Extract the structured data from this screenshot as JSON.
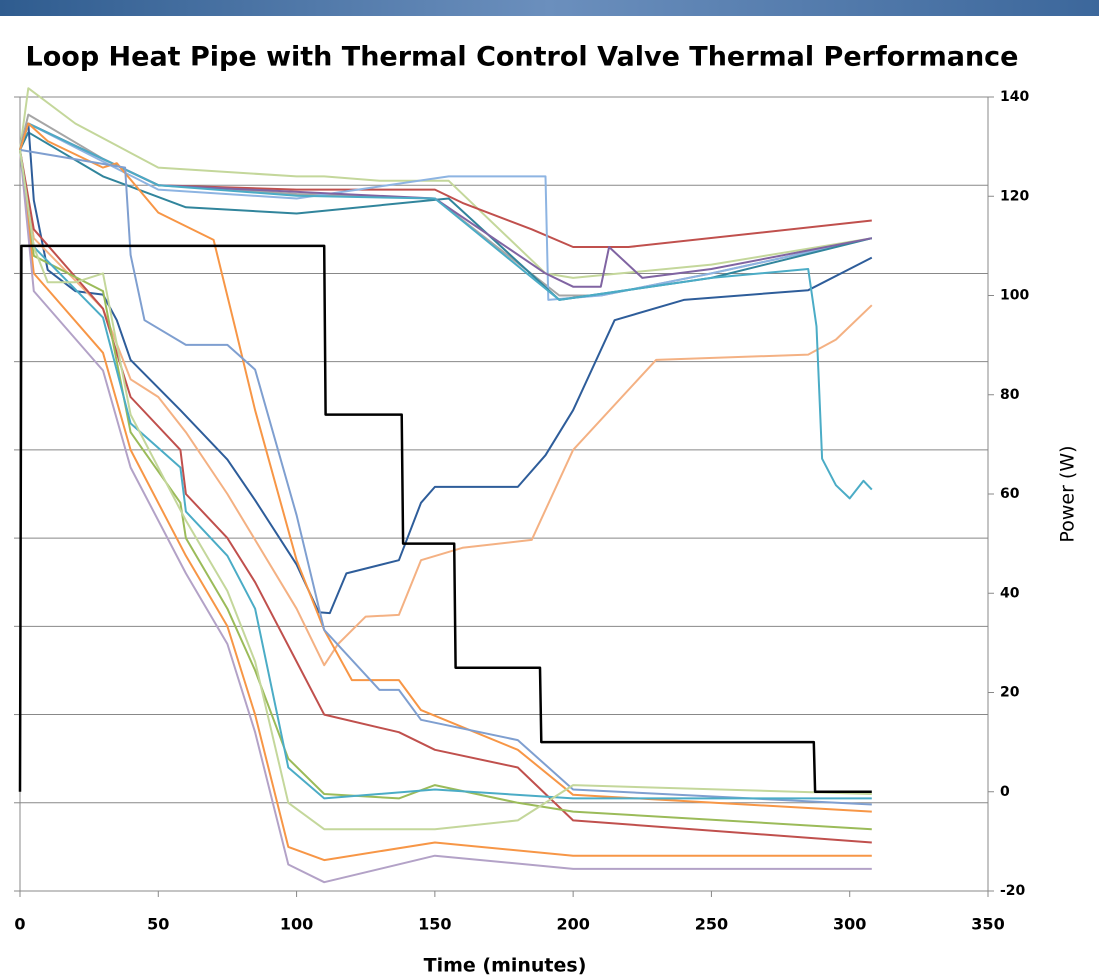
{
  "chart_data": {
    "type": "line",
    "title": "Loop Heat Pipe with Thermal Control Valve Thermal Performance",
    "x_label": "Time (minutes)",
    "y2_label": "Power (W)",
    "xlim": [
      0,
      350
    ],
    "xticks": [
      0,
      50,
      100,
      150,
      200,
      250,
      300,
      350
    ],
    "ylim": [
      -40,
      50
    ],
    "yticks": [
      -40,
      -30,
      -20,
      -10,
      0,
      10,
      20,
      30,
      40,
      50
    ],
    "y2lim": [
      -20,
      140
    ],
    "y2ticks": [
      -20,
      0,
      20,
      40,
      60,
      80,
      100,
      120,
      140
    ],
    "grid": true,
    "series": [
      {
        "color": "#c4d79b",
        "x": [
          0,
          3,
          20,
          50,
          100,
          110,
          130,
          155,
          190,
          200,
          250,
          308
        ],
        "values": [
          44,
          51,
          47,
          42,
          41,
          41,
          40.5,
          40.5,
          30,
          29.5,
          31,
          34
        ]
      },
      {
        "color": "#c0504d",
        "x": [
          0,
          3,
          50,
          100,
          150,
          160,
          185,
          200,
          220,
          308
        ],
        "values": [
          44,
          47,
          40,
          39.5,
          39.5,
          38,
          35,
          33,
          33,
          36
        ]
      },
      {
        "color": "#a6a6a6",
        "x": [
          0,
          3,
          30,
          50,
          100,
          150,
          195,
          210,
          250,
          308
        ],
        "values": [
          44,
          48,
          43,
          40,
          39,
          38.5,
          27.5,
          27.5,
          30,
          34
        ]
      },
      {
        "color": "#8db4e2",
        "x": [
          0,
          3,
          50,
          100,
          155,
          190,
          191,
          210,
          250,
          308
        ],
        "values": [
          44,
          47,
          39.5,
          38.5,
          41,
          41,
          27,
          27.5,
          30,
          34
        ]
      },
      {
        "color": "#31859c",
        "x": [
          0,
          3,
          30,
          60,
          100,
          155,
          195,
          250,
          308
        ],
        "values": [
          44,
          46,
          41,
          37.5,
          36.8,
          38.5,
          27,
          29.5,
          34
        ]
      },
      {
        "color": "#8064a2",
        "x": [
          0,
          3,
          50,
          150,
          190,
          200,
          210,
          213,
          225,
          250,
          308
        ],
        "values": [
          44,
          47,
          40,
          38.5,
          30,
          28.5,
          28.5,
          33,
          29.5,
          30.5,
          34
        ]
      },
      {
        "color": "#2e5d9a",
        "x": [
          0,
          3,
          5,
          10,
          20,
          30,
          35,
          40,
          58,
          75,
          85,
          100,
          108,
          112,
          118,
          137,
          145,
          150,
          180,
          190,
          200,
          215,
          240,
          285,
          308
        ],
        "values": [
          44,
          47,
          38.3,
          30.4,
          28,
          27.6,
          24.7,
          20.2,
          14.5,
          8.9,
          4.3,
          -3,
          -8.4,
          -8.5,
          -4,
          -2.5,
          4,
          5.8,
          5.8,
          9.4,
          14.5,
          24.7,
          27,
          28.1,
          31.8
        ]
      },
      {
        "color": "#f4b183",
        "x": [
          0,
          5,
          30,
          40,
          50,
          60,
          75,
          100,
          110,
          115,
          125,
          137,
          145,
          160,
          185,
          200,
          230,
          285,
          295,
          308
        ],
        "values": [
          44,
          34,
          26,
          18,
          16,
          12,
          5,
          -8,
          -14.4,
          -12,
          -8.9,
          -8.7,
          -2.5,
          -1.1,
          -0.2,
          10,
          20.2,
          20.8,
          22.5,
          26.4
        ]
      },
      {
        "color": "#4bacc6",
        "x": [
          0,
          3,
          50,
          100,
          150,
          195,
          250,
          285,
          288,
          290,
          295,
          300,
          305,
          308
        ],
        "values": [
          44,
          47,
          40,
          38.8,
          38.5,
          27,
          29.5,
          30.5,
          24,
          9,
          6,
          4.5,
          6.5,
          5.5
        ]
      },
      {
        "color": "#f79646",
        "x": [
          0,
          3,
          10,
          30,
          35,
          50,
          70,
          78,
          85,
          100,
          110,
          120,
          137,
          145,
          180,
          200,
          308
        ],
        "values": [
          44,
          47,
          45,
          42,
          42.5,
          36.9,
          33.8,
          23.6,
          14.5,
          -2.5,
          -10.4,
          -16.1,
          -16.1,
          -19.5,
          -24,
          -29.1,
          -31
        ]
      },
      {
        "color": "#7f9fd0",
        "x": [
          0,
          38,
          40,
          45,
          60,
          75,
          85,
          100,
          110,
          130,
          137,
          145,
          180,
          200,
          308
        ],
        "values": [
          44,
          42,
          32.1,
          24.7,
          21.9,
          21.9,
          19.1,
          2.6,
          -10.4,
          -17.2,
          -17.2,
          -20.6,
          -22.9,
          -28.5,
          -30.2
        ]
      },
      {
        "color": "#c0504d",
        "x": [
          0,
          5,
          30,
          40,
          58,
          60,
          75,
          85,
          100,
          110,
          137,
          150,
          180,
          200,
          308
        ],
        "values": [
          44,
          35,
          26,
          16,
          10,
          5,
          0,
          -5,
          -14,
          -20,
          -22,
          -24,
          -26,
          -32,
          -34.5
        ]
      },
      {
        "color": "#9bbb59",
        "x": [
          0,
          5,
          30,
          40,
          58,
          60,
          75,
          85,
          97,
          110,
          137,
          150,
          180,
          200,
          308
        ],
        "values": [
          44,
          32,
          28,
          12,
          4,
          0,
          -8,
          -15,
          -25,
          -29,
          -29.5,
          -28,
          -30,
          -31,
          -33
        ]
      },
      {
        "color": "#f79646",
        "x": [
          0,
          5,
          30,
          40,
          60,
          75,
          85,
          97,
          110,
          150,
          200,
          308
        ],
        "values": [
          44,
          30,
          21,
          10,
          -2,
          -10,
          -20,
          -35,
          -36.5,
          -34.5,
          -36,
          -36
        ]
      },
      {
        "color": "#b3a2c7",
        "x": [
          0,
          5,
          30,
          40,
          60,
          75,
          85,
          97,
          110,
          150,
          200,
          308
        ],
        "values": [
          44,
          28,
          19,
          8,
          -4,
          -12,
          -22,
          -37,
          -39,
          -36,
          -37.5,
          -37.5
        ]
      },
      {
        "color": "#4bacc6",
        "x": [
          0,
          5,
          30,
          40,
          58,
          60,
          75,
          85,
          97,
          110,
          150,
          200,
          308
        ],
        "values": [
          44,
          33,
          25,
          13,
          8,
          3,
          -2,
          -8,
          -26,
          -29.5,
          -28.5,
          -29.5,
          -29.5
        ]
      },
      {
        "color": "#c4d79b",
        "x": [
          0,
          5,
          10,
          20,
          30,
          40,
          60,
          75,
          85,
          97,
          110,
          150,
          180,
          200,
          308
        ],
        "values": [
          44,
          33,
          29,
          29,
          30,
          14,
          2,
          -6,
          -14,
          -30,
          -33,
          -33,
          -32,
          -28,
          -29
        ]
      },
      {
        "color": "#000000",
        "axis": "y2",
        "x": [
          0,
          0.5,
          110,
          110.5,
          138,
          138.5,
          157,
          157.5,
          188,
          188.5,
          287,
          287.5,
          308
        ],
        "values": [
          0,
          110,
          110,
          76,
          76,
          50,
          50,
          25,
          25,
          10,
          10,
          0,
          0
        ]
      }
    ]
  }
}
